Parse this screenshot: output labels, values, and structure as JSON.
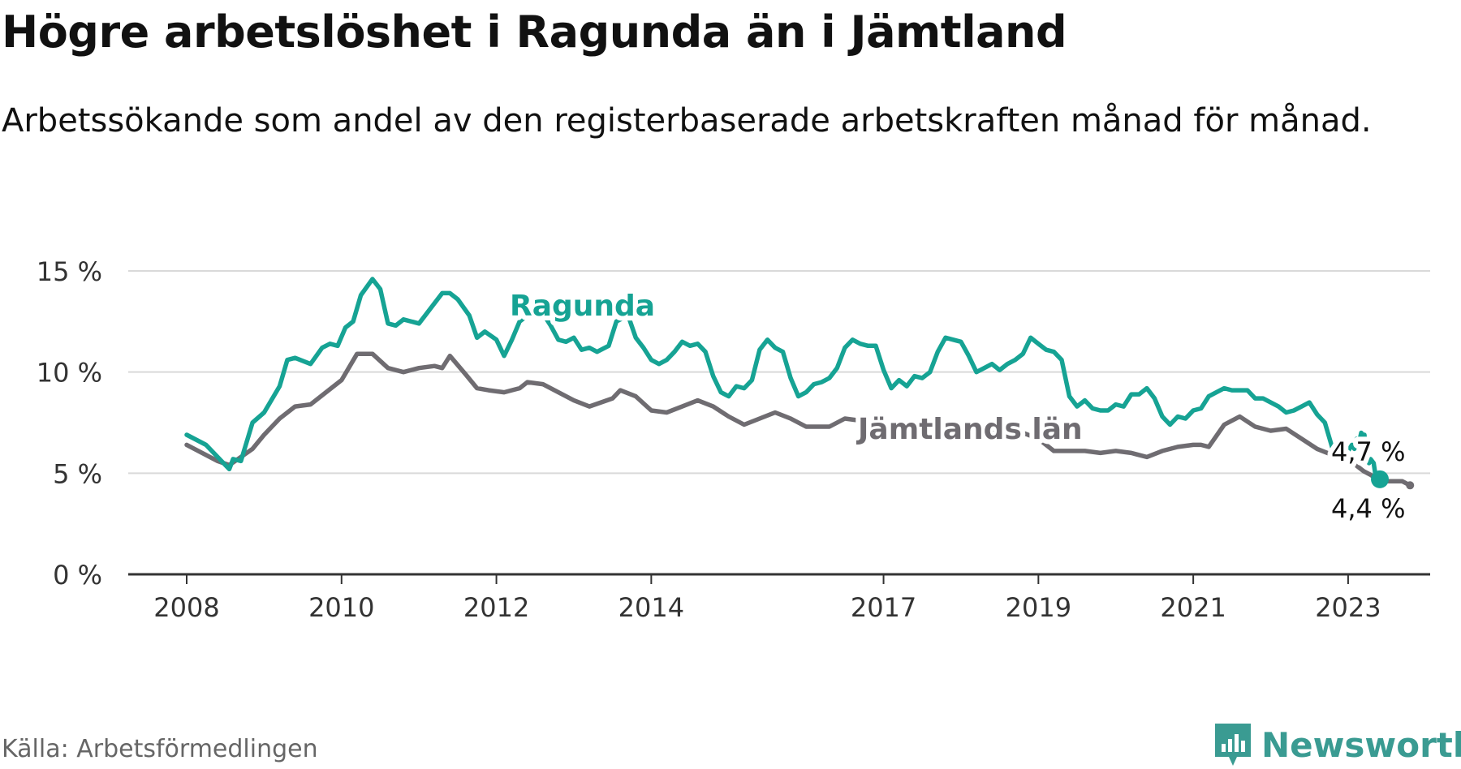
{
  "title": "Högre arbetslöshet i Ragunda än i Jämtland",
  "subtitle": "Arbetssökande som andel av den registerbaserade arbetskraften månad för månad.",
  "source": "Källa: Arbetsförmedlingen",
  "brand": {
    "name": "Newsworthy",
    "icon": "newsworthy-logo-icon",
    "color": "#3a9b92"
  },
  "chart_data": {
    "type": "line",
    "xlim": [
      2008.0,
      2023.2
    ],
    "ylim": [
      0,
      15
    ],
    "x_ticks": [
      2008,
      2010,
      2012,
      2014,
      2017,
      2019,
      2021,
      2023
    ],
    "y_ticks": [
      {
        "value": 0,
        "label": "0 %"
      },
      {
        "value": 5,
        "label": "5 %"
      },
      {
        "value": 10,
        "label": "10 %"
      },
      {
        "value": 15,
        "label": "15 %"
      }
    ],
    "grid": true,
    "series": [
      {
        "name": "Ragunda",
        "color": "#16a394",
        "end_label": "4,7 %",
        "points": [
          [
            2008.0,
            6.9
          ],
          [
            2008.25,
            6.4
          ],
          [
            2008.45,
            5.6
          ],
          [
            2008.55,
            5.2
          ],
          [
            2008.6,
            5.7
          ],
          [
            2008.7,
            5.6
          ],
          [
            2008.85,
            7.5
          ],
          [
            2009.0,
            8.0
          ],
          [
            2009.2,
            9.3
          ],
          [
            2009.3,
            10.6
          ],
          [
            2009.4,
            10.7
          ],
          [
            2009.6,
            10.4
          ],
          [
            2009.75,
            11.2
          ],
          [
            2009.85,
            11.4
          ],
          [
            2009.95,
            11.3
          ],
          [
            2010.05,
            12.2
          ],
          [
            2010.15,
            12.5
          ],
          [
            2010.25,
            13.8
          ],
          [
            2010.4,
            14.6
          ],
          [
            2010.5,
            14.1
          ],
          [
            2010.6,
            12.4
          ],
          [
            2010.7,
            12.3
          ],
          [
            2010.8,
            12.6
          ],
          [
            2011.0,
            12.4
          ],
          [
            2011.1,
            12.9
          ],
          [
            2011.3,
            13.9
          ],
          [
            2011.4,
            13.9
          ],
          [
            2011.5,
            13.6
          ],
          [
            2011.65,
            12.8
          ],
          [
            2011.75,
            11.7
          ],
          [
            2011.85,
            12.0
          ],
          [
            2012.0,
            11.6
          ],
          [
            2012.1,
            10.8
          ],
          [
            2012.2,
            11.6
          ],
          [
            2012.3,
            12.5
          ],
          [
            2012.4,
            12.8
          ],
          [
            2012.6,
            12.9
          ],
          [
            2012.7,
            12.3
          ],
          [
            2012.8,
            11.6
          ],
          [
            2012.9,
            11.5
          ],
          [
            2013.0,
            11.7
          ],
          [
            2013.1,
            11.1
          ],
          [
            2013.2,
            11.2
          ],
          [
            2013.3,
            11.0
          ],
          [
            2013.45,
            11.3
          ],
          [
            2013.55,
            12.5
          ],
          [
            2013.7,
            12.8
          ],
          [
            2013.8,
            11.7
          ],
          [
            2013.9,
            11.2
          ],
          [
            2014.0,
            10.6
          ],
          [
            2014.1,
            10.4
          ],
          [
            2014.2,
            10.6
          ],
          [
            2014.3,
            11.0
          ],
          [
            2014.4,
            11.5
          ],
          [
            2014.5,
            11.3
          ],
          [
            2014.6,
            11.4
          ],
          [
            2014.7,
            11.0
          ],
          [
            2014.8,
            9.8
          ],
          [
            2014.9,
            9.0
          ],
          [
            2015.0,
            8.8
          ],
          [
            2015.1,
            9.3
          ],
          [
            2015.2,
            9.2
          ],
          [
            2015.3,
            9.6
          ],
          [
            2015.4,
            11.1
          ],
          [
            2015.5,
            11.6
          ],
          [
            2015.6,
            11.2
          ],
          [
            2015.7,
            11.0
          ],
          [
            2015.8,
            9.7
          ],
          [
            2015.9,
            8.8
          ],
          [
            2016.0,
            9.0
          ],
          [
            2016.1,
            9.4
          ],
          [
            2016.2,
            9.5
          ],
          [
            2016.3,
            9.7
          ],
          [
            2016.4,
            10.2
          ],
          [
            2016.5,
            11.2
          ],
          [
            2016.6,
            11.6
          ],
          [
            2016.7,
            11.4
          ],
          [
            2016.8,
            11.3
          ],
          [
            2016.9,
            11.3
          ],
          [
            2017.0,
            10.1
          ],
          [
            2017.1,
            9.2
          ],
          [
            2017.2,
            9.6
          ],
          [
            2017.3,
            9.3
          ],
          [
            2017.4,
            9.8
          ],
          [
            2017.5,
            9.7
          ],
          [
            2017.6,
            10.0
          ],
          [
            2017.7,
            11.0
          ],
          [
            2017.8,
            11.7
          ],
          [
            2017.9,
            11.6
          ],
          [
            2018.0,
            11.5
          ],
          [
            2018.1,
            10.8
          ],
          [
            2018.2,
            10.0
          ],
          [
            2018.3,
            10.2
          ],
          [
            2018.4,
            10.4
          ],
          [
            2018.5,
            10.1
          ],
          [
            2018.6,
            10.4
          ],
          [
            2018.7,
            10.6
          ],
          [
            2018.8,
            10.9
          ],
          [
            2018.9,
            11.7
          ],
          [
            2019.0,
            11.4
          ],
          [
            2019.1,
            11.1
          ],
          [
            2019.2,
            11.0
          ],
          [
            2019.3,
            10.6
          ],
          [
            2019.4,
            8.8
          ],
          [
            2019.5,
            8.3
          ],
          [
            2019.6,
            8.6
          ],
          [
            2019.7,
            8.2
          ],
          [
            2019.8,
            8.1
          ],
          [
            2019.9,
            8.1
          ],
          [
            2020.0,
            8.4
          ],
          [
            2020.1,
            8.3
          ],
          [
            2020.2,
            8.9
          ],
          [
            2020.3,
            8.9
          ],
          [
            2020.4,
            9.2
          ],
          [
            2020.5,
            8.7
          ],
          [
            2020.6,
            7.8
          ],
          [
            2020.7,
            7.4
          ],
          [
            2020.8,
            7.8
          ],
          [
            2020.9,
            7.7
          ],
          [
            2021.0,
            8.1
          ],
          [
            2021.1,
            8.2
          ],
          [
            2021.2,
            8.8
          ],
          [
            2021.3,
            9.0
          ],
          [
            2021.4,
            9.2
          ],
          [
            2021.5,
            9.1
          ],
          [
            2021.6,
            9.1
          ],
          [
            2021.7,
            9.1
          ],
          [
            2021.8,
            8.7
          ],
          [
            2021.9,
            8.7
          ],
          [
            2022.0,
            8.5
          ],
          [
            2022.1,
            8.3
          ],
          [
            2022.2,
            8.0
          ],
          [
            2022.3,
            8.1
          ],
          [
            2022.4,
            8.3
          ],
          [
            2022.5,
            8.5
          ],
          [
            2022.6,
            7.9
          ],
          [
            2022.7,
            7.5
          ],
          [
            2022.8,
            6.2
          ],
          [
            2022.9,
            5.6
          ],
          [
            2023.0,
            6.1
          ],
          [
            2023.05,
            6.4
          ],
          [
            2023.08,
            6.2
          ],
          [
            2023.11,
            6.7
          ],
          [
            2023.14,
            6.5
          ],
          [
            2023.17,
            7.0
          ],
          [
            2023.19,
            6.9
          ],
          [
            2023.21,
            6.9
          ],
          [
            2023.23,
            6.1
          ],
          [
            2023.25,
            5.6
          ],
          [
            2023.27,
            5.5
          ],
          [
            2023.29,
            5.7
          ],
          [
            2023.31,
            5.6
          ],
          [
            2023.33,
            5.5
          ],
          [
            2023.35,
            5.0
          ],
          [
            2023.37,
            4.9
          ],
          [
            2023.39,
            4.8
          ],
          [
            2023.41,
            4.7
          ]
        ]
      },
      {
        "name": "Jämtlands län",
        "color": "#6f6c71",
        "end_label": "4,4 %",
        "points": [
          [
            2008.0,
            6.4
          ],
          [
            2008.2,
            6.0
          ],
          [
            2008.4,
            5.6
          ],
          [
            2008.55,
            5.4
          ],
          [
            2008.7,
            5.8
          ],
          [
            2008.85,
            6.2
          ],
          [
            2009.0,
            6.9
          ],
          [
            2009.2,
            7.7
          ],
          [
            2009.4,
            8.3
          ],
          [
            2009.6,
            8.4
          ],
          [
            2009.8,
            9.0
          ],
          [
            2010.0,
            9.6
          ],
          [
            2010.2,
            10.9
          ],
          [
            2010.4,
            10.9
          ],
          [
            2010.6,
            10.2
          ],
          [
            2010.8,
            10.0
          ],
          [
            2011.0,
            10.2
          ],
          [
            2011.2,
            10.3
          ],
          [
            2011.3,
            10.2
          ],
          [
            2011.4,
            10.8
          ],
          [
            2011.6,
            9.9
          ],
          [
            2011.75,
            9.2
          ],
          [
            2011.9,
            9.1
          ],
          [
            2012.1,
            9.0
          ],
          [
            2012.3,
            9.2
          ],
          [
            2012.4,
            9.5
          ],
          [
            2012.6,
            9.4
          ],
          [
            2012.8,
            9.0
          ],
          [
            2013.0,
            8.6
          ],
          [
            2013.2,
            8.3
          ],
          [
            2013.5,
            8.7
          ],
          [
            2013.6,
            9.1
          ],
          [
            2013.8,
            8.8
          ],
          [
            2014.0,
            8.1
          ],
          [
            2014.2,
            8.0
          ],
          [
            2014.4,
            8.3
          ],
          [
            2014.6,
            8.6
          ],
          [
            2014.8,
            8.3
          ],
          [
            2015.0,
            7.8
          ],
          [
            2015.2,
            7.4
          ],
          [
            2015.4,
            7.7
          ],
          [
            2015.6,
            8.0
          ],
          [
            2015.8,
            7.7
          ],
          [
            2016.0,
            7.3
          ],
          [
            2016.3,
            7.3
          ],
          [
            2016.5,
            7.7
          ],
          [
            2016.7,
            7.6
          ],
          [
            2016.9,
            7.2
          ],
          [
            2017.0,
            6.7
          ],
          [
            2017.2,
            6.8
          ],
          [
            2017.4,
            6.8
          ],
          [
            2017.6,
            7.0
          ],
          [
            2017.8,
            7.2
          ],
          [
            2018.0,
            7.2
          ],
          [
            2018.2,
            7.2
          ],
          [
            2018.4,
            7.1
          ],
          [
            2018.6,
            6.9
          ],
          [
            2018.8,
            7.0
          ],
          [
            2019.0,
            6.7
          ],
          [
            2019.2,
            6.1
          ],
          [
            2019.4,
            6.1
          ],
          [
            2019.6,
            6.1
          ],
          [
            2019.8,
            6.0
          ],
          [
            2020.0,
            6.1
          ],
          [
            2020.2,
            6.0
          ],
          [
            2020.4,
            5.8
          ],
          [
            2020.6,
            6.1
          ],
          [
            2020.8,
            6.3
          ],
          [
            2021.0,
            6.4
          ],
          [
            2021.1,
            6.4
          ],
          [
            2021.2,
            6.3
          ],
          [
            2021.4,
            7.4
          ],
          [
            2021.6,
            7.8
          ],
          [
            2021.8,
            7.3
          ],
          [
            2022.0,
            7.1
          ],
          [
            2022.2,
            7.2
          ],
          [
            2022.4,
            6.7
          ],
          [
            2022.6,
            6.2
          ],
          [
            2022.8,
            5.9
          ],
          [
            2023.0,
            5.5
          ],
          [
            2023.1,
            5.4
          ],
          [
            2023.2,
            5.1
          ],
          [
            2023.3,
            4.9
          ],
          [
            2023.4,
            4.6
          ],
          [
            2023.55,
            4.6
          ],
          [
            2023.7,
            4.6
          ],
          [
            2023.8,
            4.4
          ]
        ]
      }
    ],
    "annotations": [
      {
        "text": "Ragunda",
        "series": 0
      },
      {
        "text": "Jämtlands län",
        "series": 1
      },
      {
        "text": "4,7 %",
        "series": 0
      },
      {
        "text": "4,4 %",
        "series": 1
      }
    ]
  }
}
